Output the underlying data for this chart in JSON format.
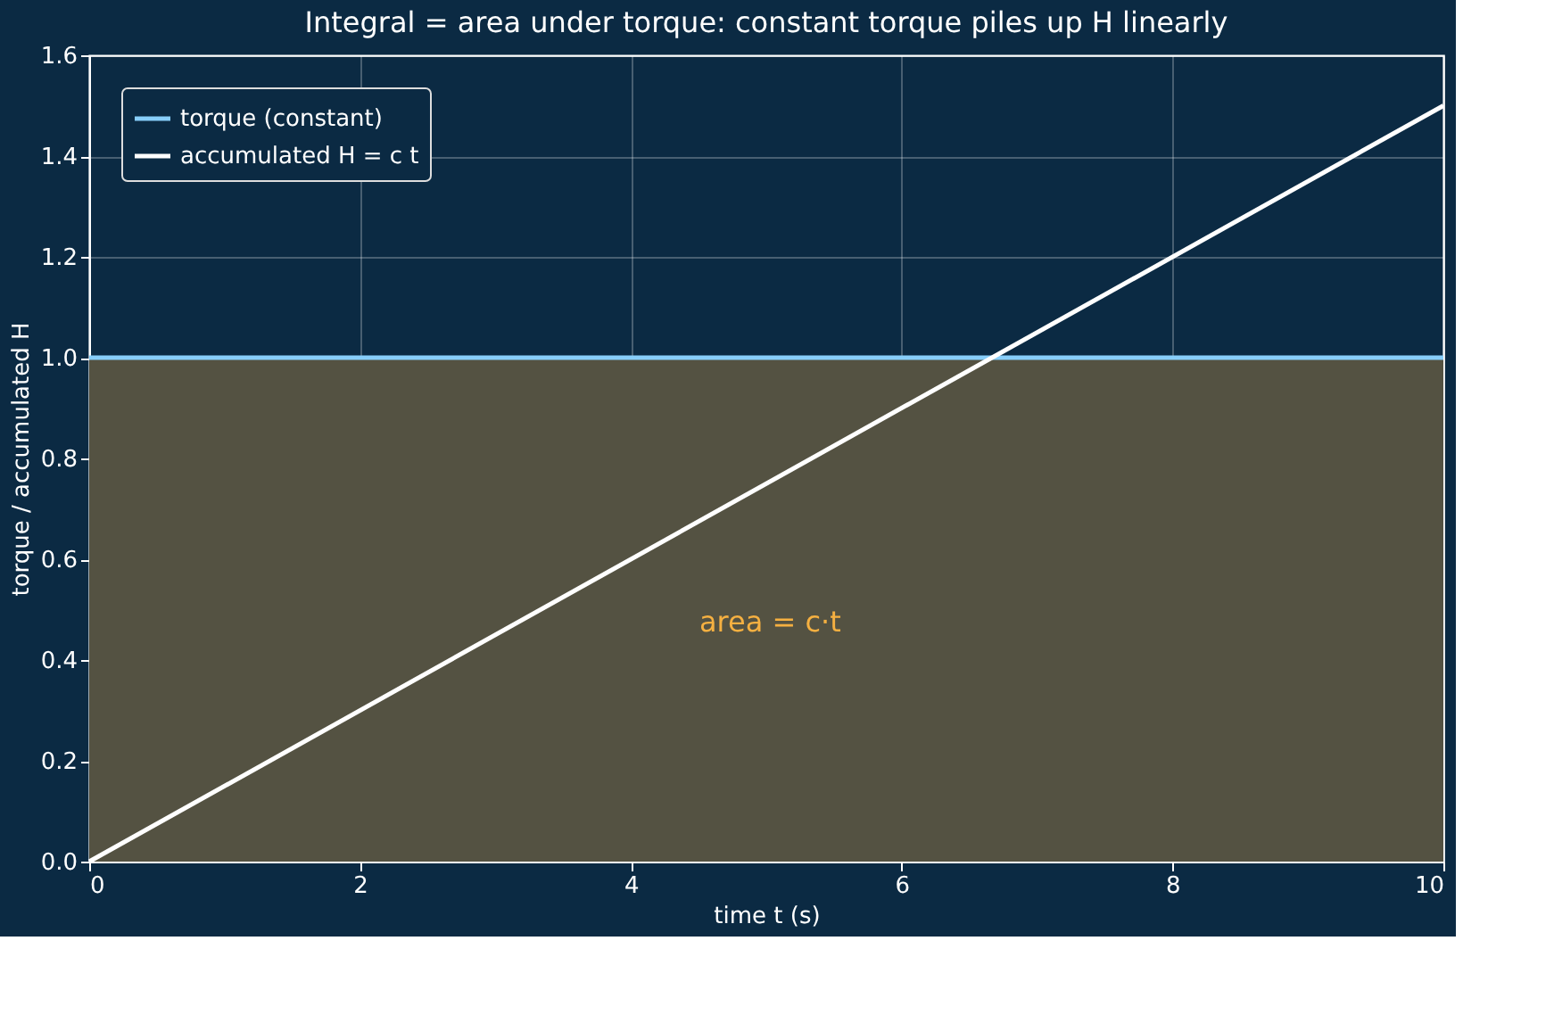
{
  "chart_data": {
    "type": "line",
    "title": "Integral = area under torque: constant torque piles up H linearly",
    "xlabel": "time t (s)",
    "ylabel": "torque  /  accumulated H",
    "x": [
      0,
      10
    ],
    "series": [
      {
        "name": "torque (constant)",
        "color": "#87cefa",
        "values": [
          1.0,
          1.0
        ]
      },
      {
        "name": "accumulated H = c t",
        "color": "#ffffff",
        "values": [
          0,
          1.5
        ]
      }
    ],
    "bands": [
      {
        "axis": "y",
        "from": 0,
        "to": 1.0,
        "color": "#545242"
      }
    ],
    "annotations": [
      "area = c·t"
    ],
    "xlim": [
      0,
      10
    ],
    "xticks": [
      0,
      2,
      4,
      6,
      8,
      10
    ],
    "ylim": [
      0,
      1.6
    ],
    "yticks": [
      {
        "value": 0,
        "label": "0.0"
      },
      {
        "value": 0.2,
        "label": "0.2"
      },
      {
        "value": 0.4,
        "label": "0.4"
      },
      {
        "value": 0.6,
        "label": "0.6"
      },
      {
        "value": 0.8,
        "label": "0.8"
      },
      {
        "value": 1.0,
        "label": "1.0"
      },
      {
        "value": 1.2,
        "label": "1.2"
      },
      {
        "value": 1.4,
        "label": "1.4"
      },
      {
        "value": 1.6,
        "label": "1.6"
      }
    ],
    "grid": true,
    "legend": "top left",
    "line_style": "solid"
  }
}
